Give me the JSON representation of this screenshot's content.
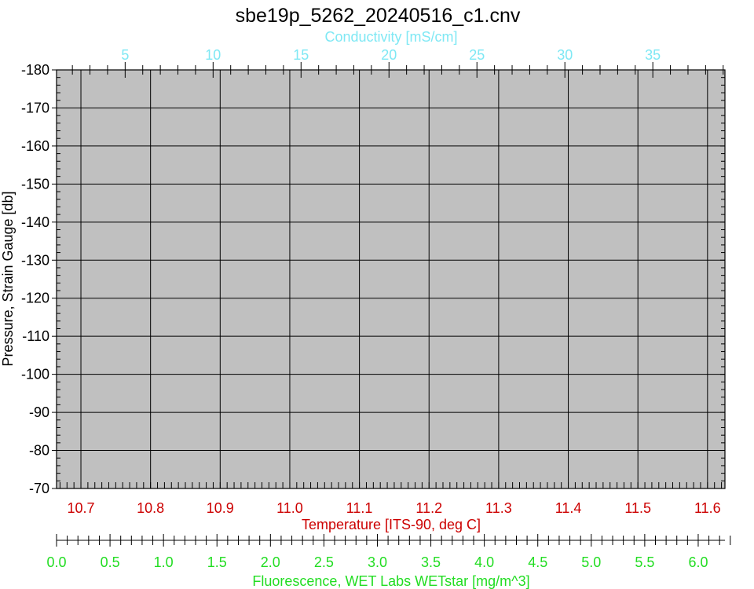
{
  "chart_data": {
    "type": "line",
    "title": "sbe19p_5262_20240516_c1.cnv",
    "grid": true,
    "plot_background": "#c0c0c0",
    "series": [],
    "axes": {
      "y": {
        "label": "Pressure, Strain Gauge [db]",
        "color": "#000000",
        "range": [
          -180,
          -70
        ],
        "ticks": [
          -180,
          -170,
          -160,
          -150,
          -140,
          -130,
          -120,
          -110,
          -100,
          -90,
          -80,
          -70
        ],
        "tick_labels": [
          "-180",
          "-170",
          "-160",
          "-150",
          "-140",
          "-130",
          "-120",
          "-110",
          "-100",
          "-90",
          "-80",
          "-70"
        ],
        "minor_step": 2,
        "inverted": true
      },
      "x_temperature": {
        "label": "Temperature [ITS-90, deg C]",
        "color": "#cc0000",
        "position": "bottom",
        "range": [
          10.665,
          11.625
        ],
        "ticks": [
          10.7,
          10.8,
          10.9,
          11.0,
          11.1,
          11.2,
          11.3,
          11.4,
          11.5,
          11.6
        ],
        "tick_labels": [
          "10.7",
          "10.8",
          "10.9",
          "11.0",
          "11.1",
          "11.2",
          "11.3",
          "11.4",
          "11.5",
          "11.6"
        ]
      },
      "x_conductivity": {
        "label": "Conductivity [mS/cm]",
        "color": "#7fe8f4",
        "position": "top",
        "range": [
          1.1,
          39.1
        ],
        "ticks": [
          5,
          10,
          15,
          20,
          25,
          30,
          35
        ],
        "tick_labels": [
          "5",
          "10",
          "15",
          "20",
          "25",
          "30",
          "35"
        ],
        "minor_step": 1
      },
      "x_fluorescence": {
        "label": "Fluorescence, WET Labs WETstar [mg/m^3]",
        "color": "#22dd22",
        "position": "bottom-secondary",
        "range": [
          0.0,
          6.25
        ],
        "ticks": [
          0.0,
          0.5,
          1.0,
          1.5,
          2.0,
          2.5,
          3.0,
          3.5,
          4.0,
          4.5,
          5.0,
          5.5,
          6.0
        ],
        "tick_labels": [
          "0.0",
          "0.5",
          "1.0",
          "1.5",
          "2.0",
          "2.5",
          "3.0",
          "3.5",
          "4.0",
          "4.5",
          "5.0",
          "5.5",
          "6.0"
        ],
        "minor_step": 0.1
      }
    }
  }
}
